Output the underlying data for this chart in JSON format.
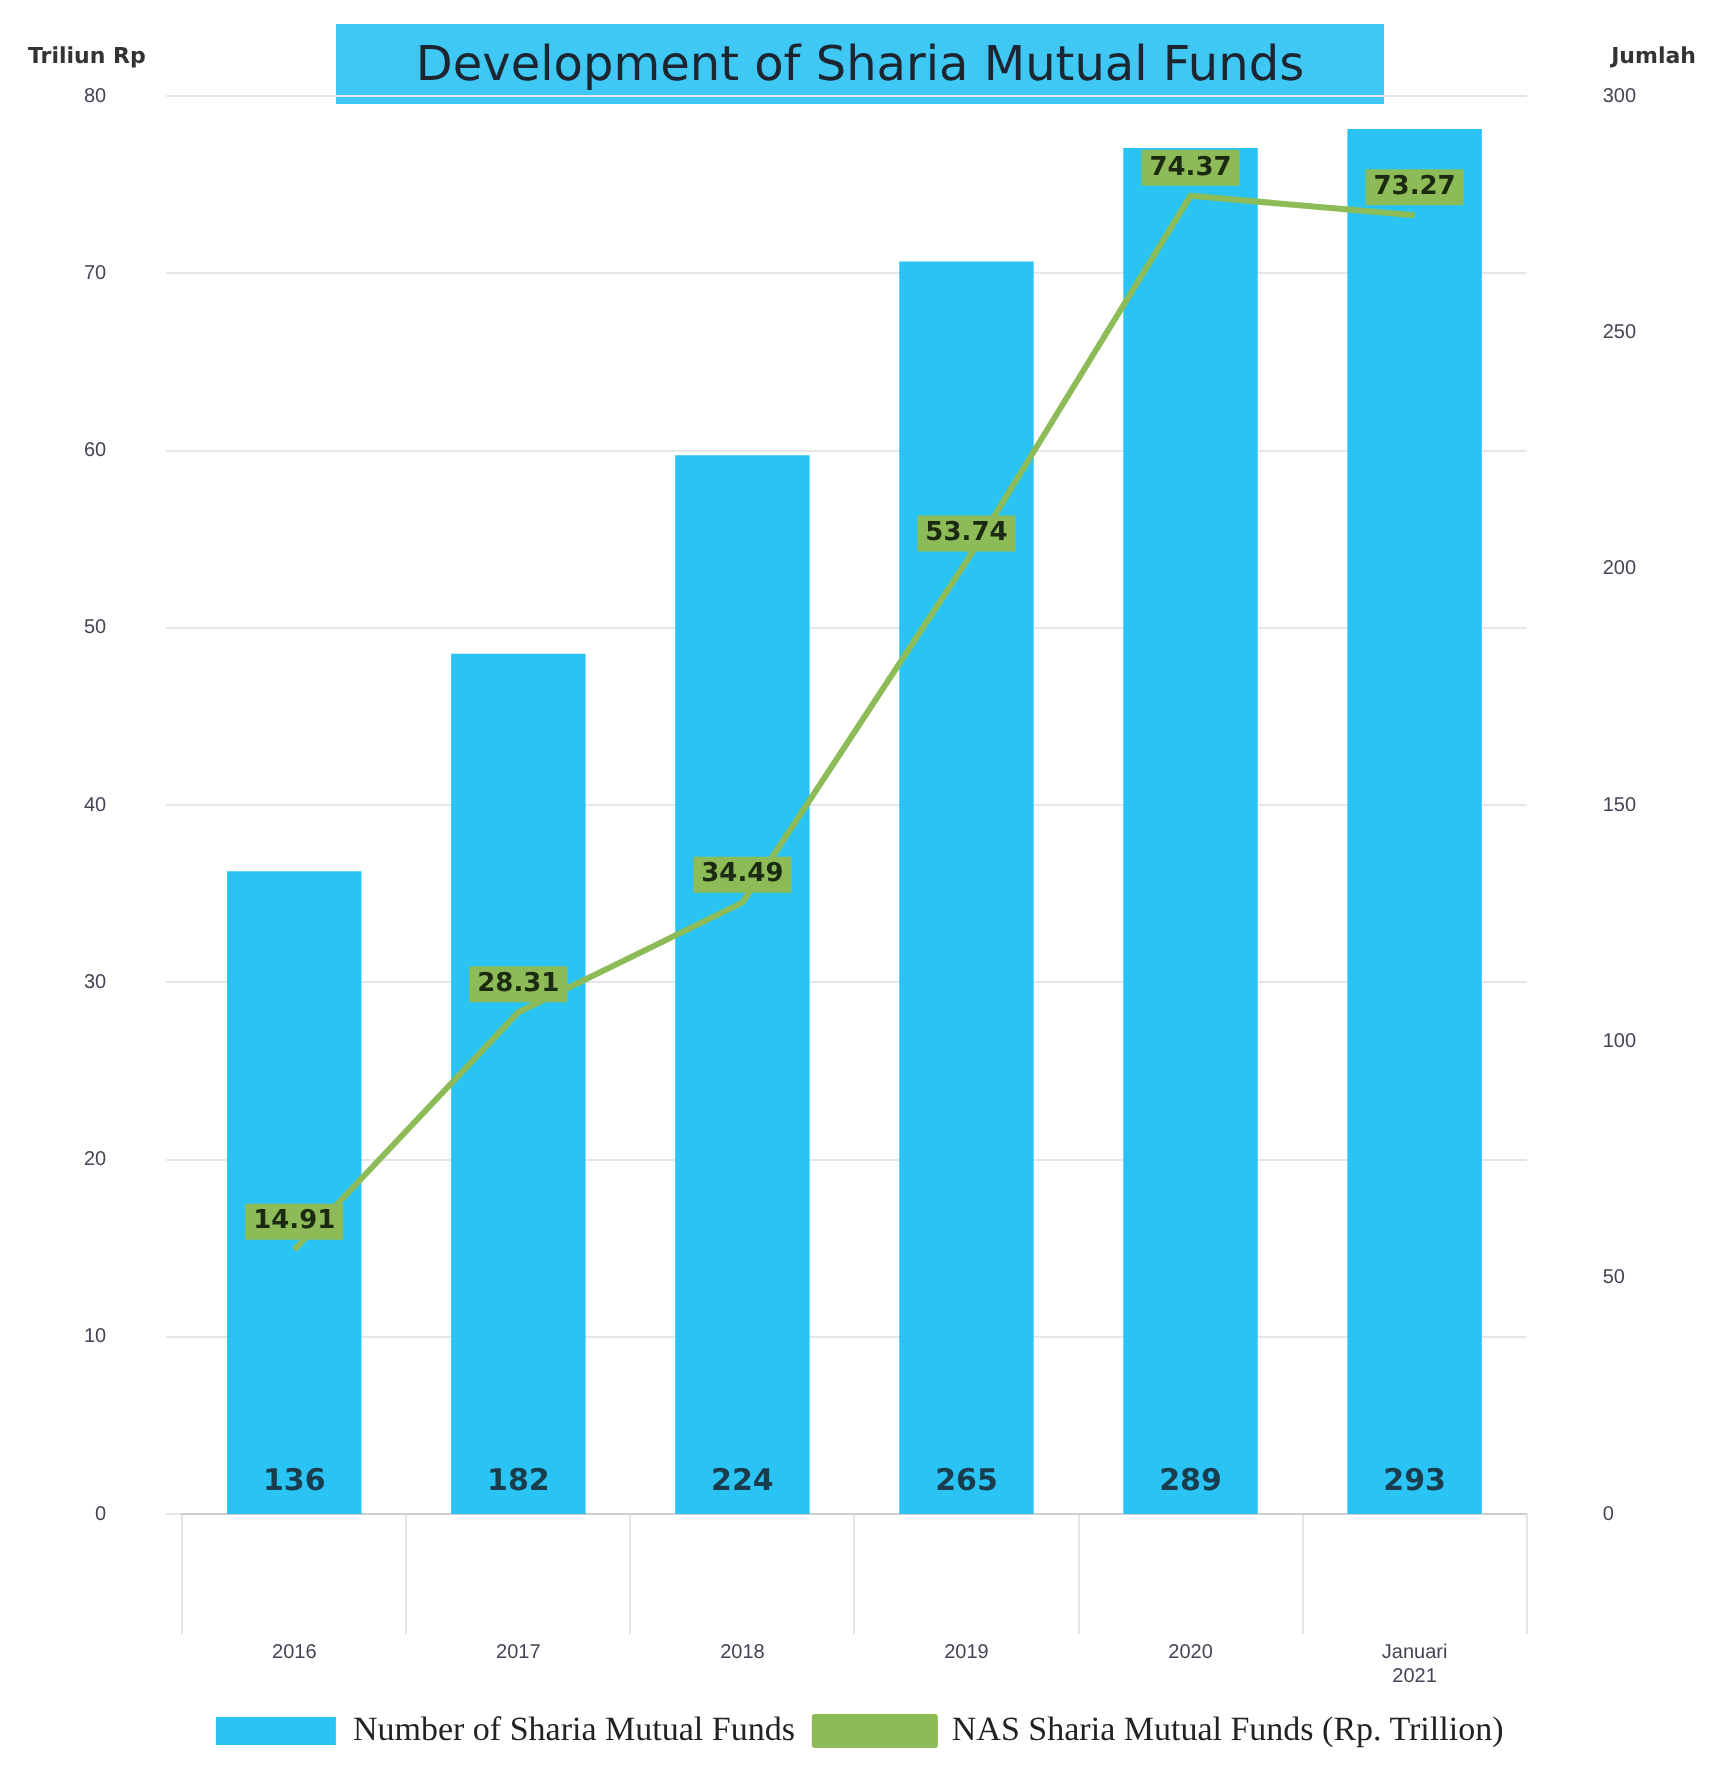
{
  "chart_data": {
    "type": "bar",
    "title": "Development of Sharia Mutual Funds",
    "ylabel": "Triliun Rp",
    "y2label": "Jumlah",
    "categories": [
      "2016",
      "2017",
      "2018",
      "2019",
      "2020",
      "Januari 2021"
    ],
    "series": [
      {
        "name": "Number of Sharia Mutual Funds",
        "axis": "y2",
        "color": "#29c4f4",
        "values": [
          136,
          182,
          224,
          265,
          289,
          293
        ]
      },
      {
        "name": "NAS Sharia Mutual Funds (Rp. Trillion)",
        "type": "line",
        "axis": "y",
        "color": "#8dbb57",
        "values": [
          14.91,
          28.31,
          34.49,
          53.74,
          74.37,
          73.27
        ]
      }
    ],
    "ylim": [
      0,
      80
    ],
    "yticks": [
      0,
      10,
      20,
      30,
      40,
      50,
      60,
      70,
      80
    ],
    "y2lim": [
      0,
      300
    ],
    "y2ticks": [
      0,
      50,
      100,
      150,
      200,
      250,
      300
    ],
    "grid": "y",
    "legend": "bottom",
    "data_labels": true
  }
}
